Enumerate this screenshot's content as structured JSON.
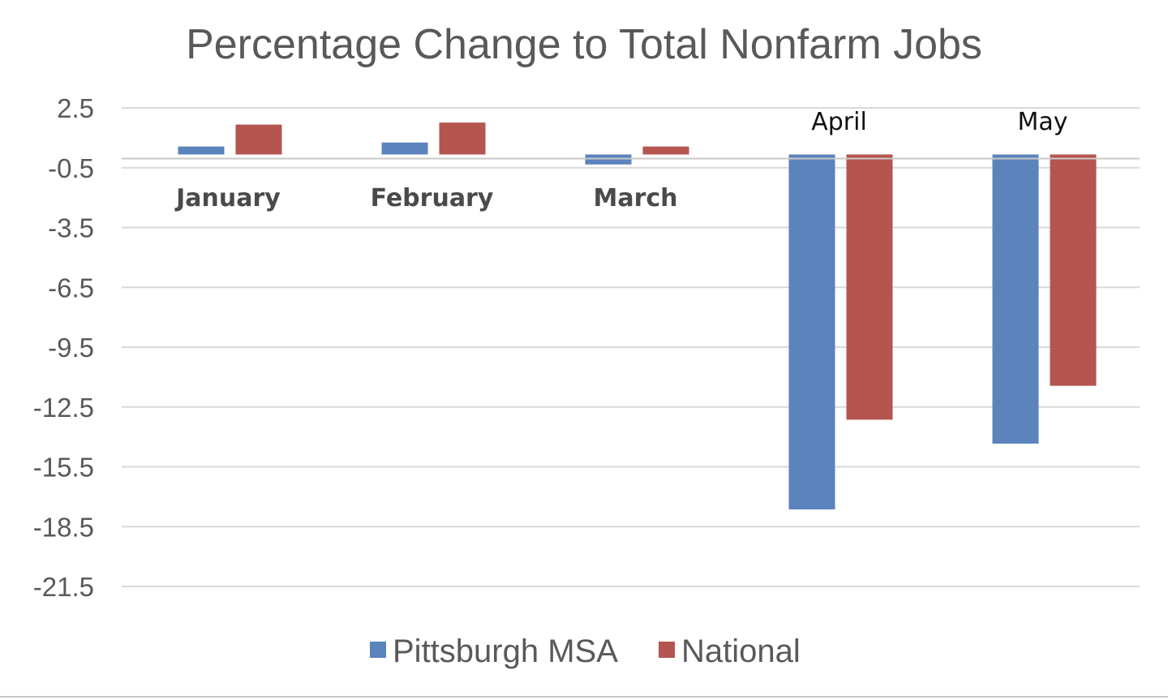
{
  "chart_data": {
    "type": "bar",
    "title": "Percentage Change to Total Nonfarm Jobs",
    "xlabel": "",
    "ylabel": "",
    "categories": [
      "January",
      "February",
      "March",
      "April",
      "May"
    ],
    "series": [
      {
        "name": "Pittsburgh MSA",
        "color": "#5b83bc",
        "values": [
          0.4,
          0.6,
          -0.5,
          -17.8,
          -14.5
        ]
      },
      {
        "name": "National",
        "color": "#b5554f",
        "values": [
          1.5,
          1.6,
          0.4,
          -13.3,
          -11.6
        ]
      }
    ],
    "yticks": [
      "2.5",
      "-0.5",
      "-3.5",
      "-6.5",
      "-9.5",
      "-12.5",
      "-15.5",
      "-18.5",
      "-21.5"
    ],
    "ytick_values": [
      2.5,
      -0.5,
      -3.5,
      -6.5,
      -9.5,
      -12.5,
      -15.5,
      -18.5,
      -21.5
    ],
    "ylim": [
      -21.5,
      2.5
    ],
    "category_label_positions": [
      "below-axis",
      "below-axis",
      "below-axis",
      "above-axis",
      "above-axis"
    ],
    "grid": true,
    "legend": "bottom"
  }
}
